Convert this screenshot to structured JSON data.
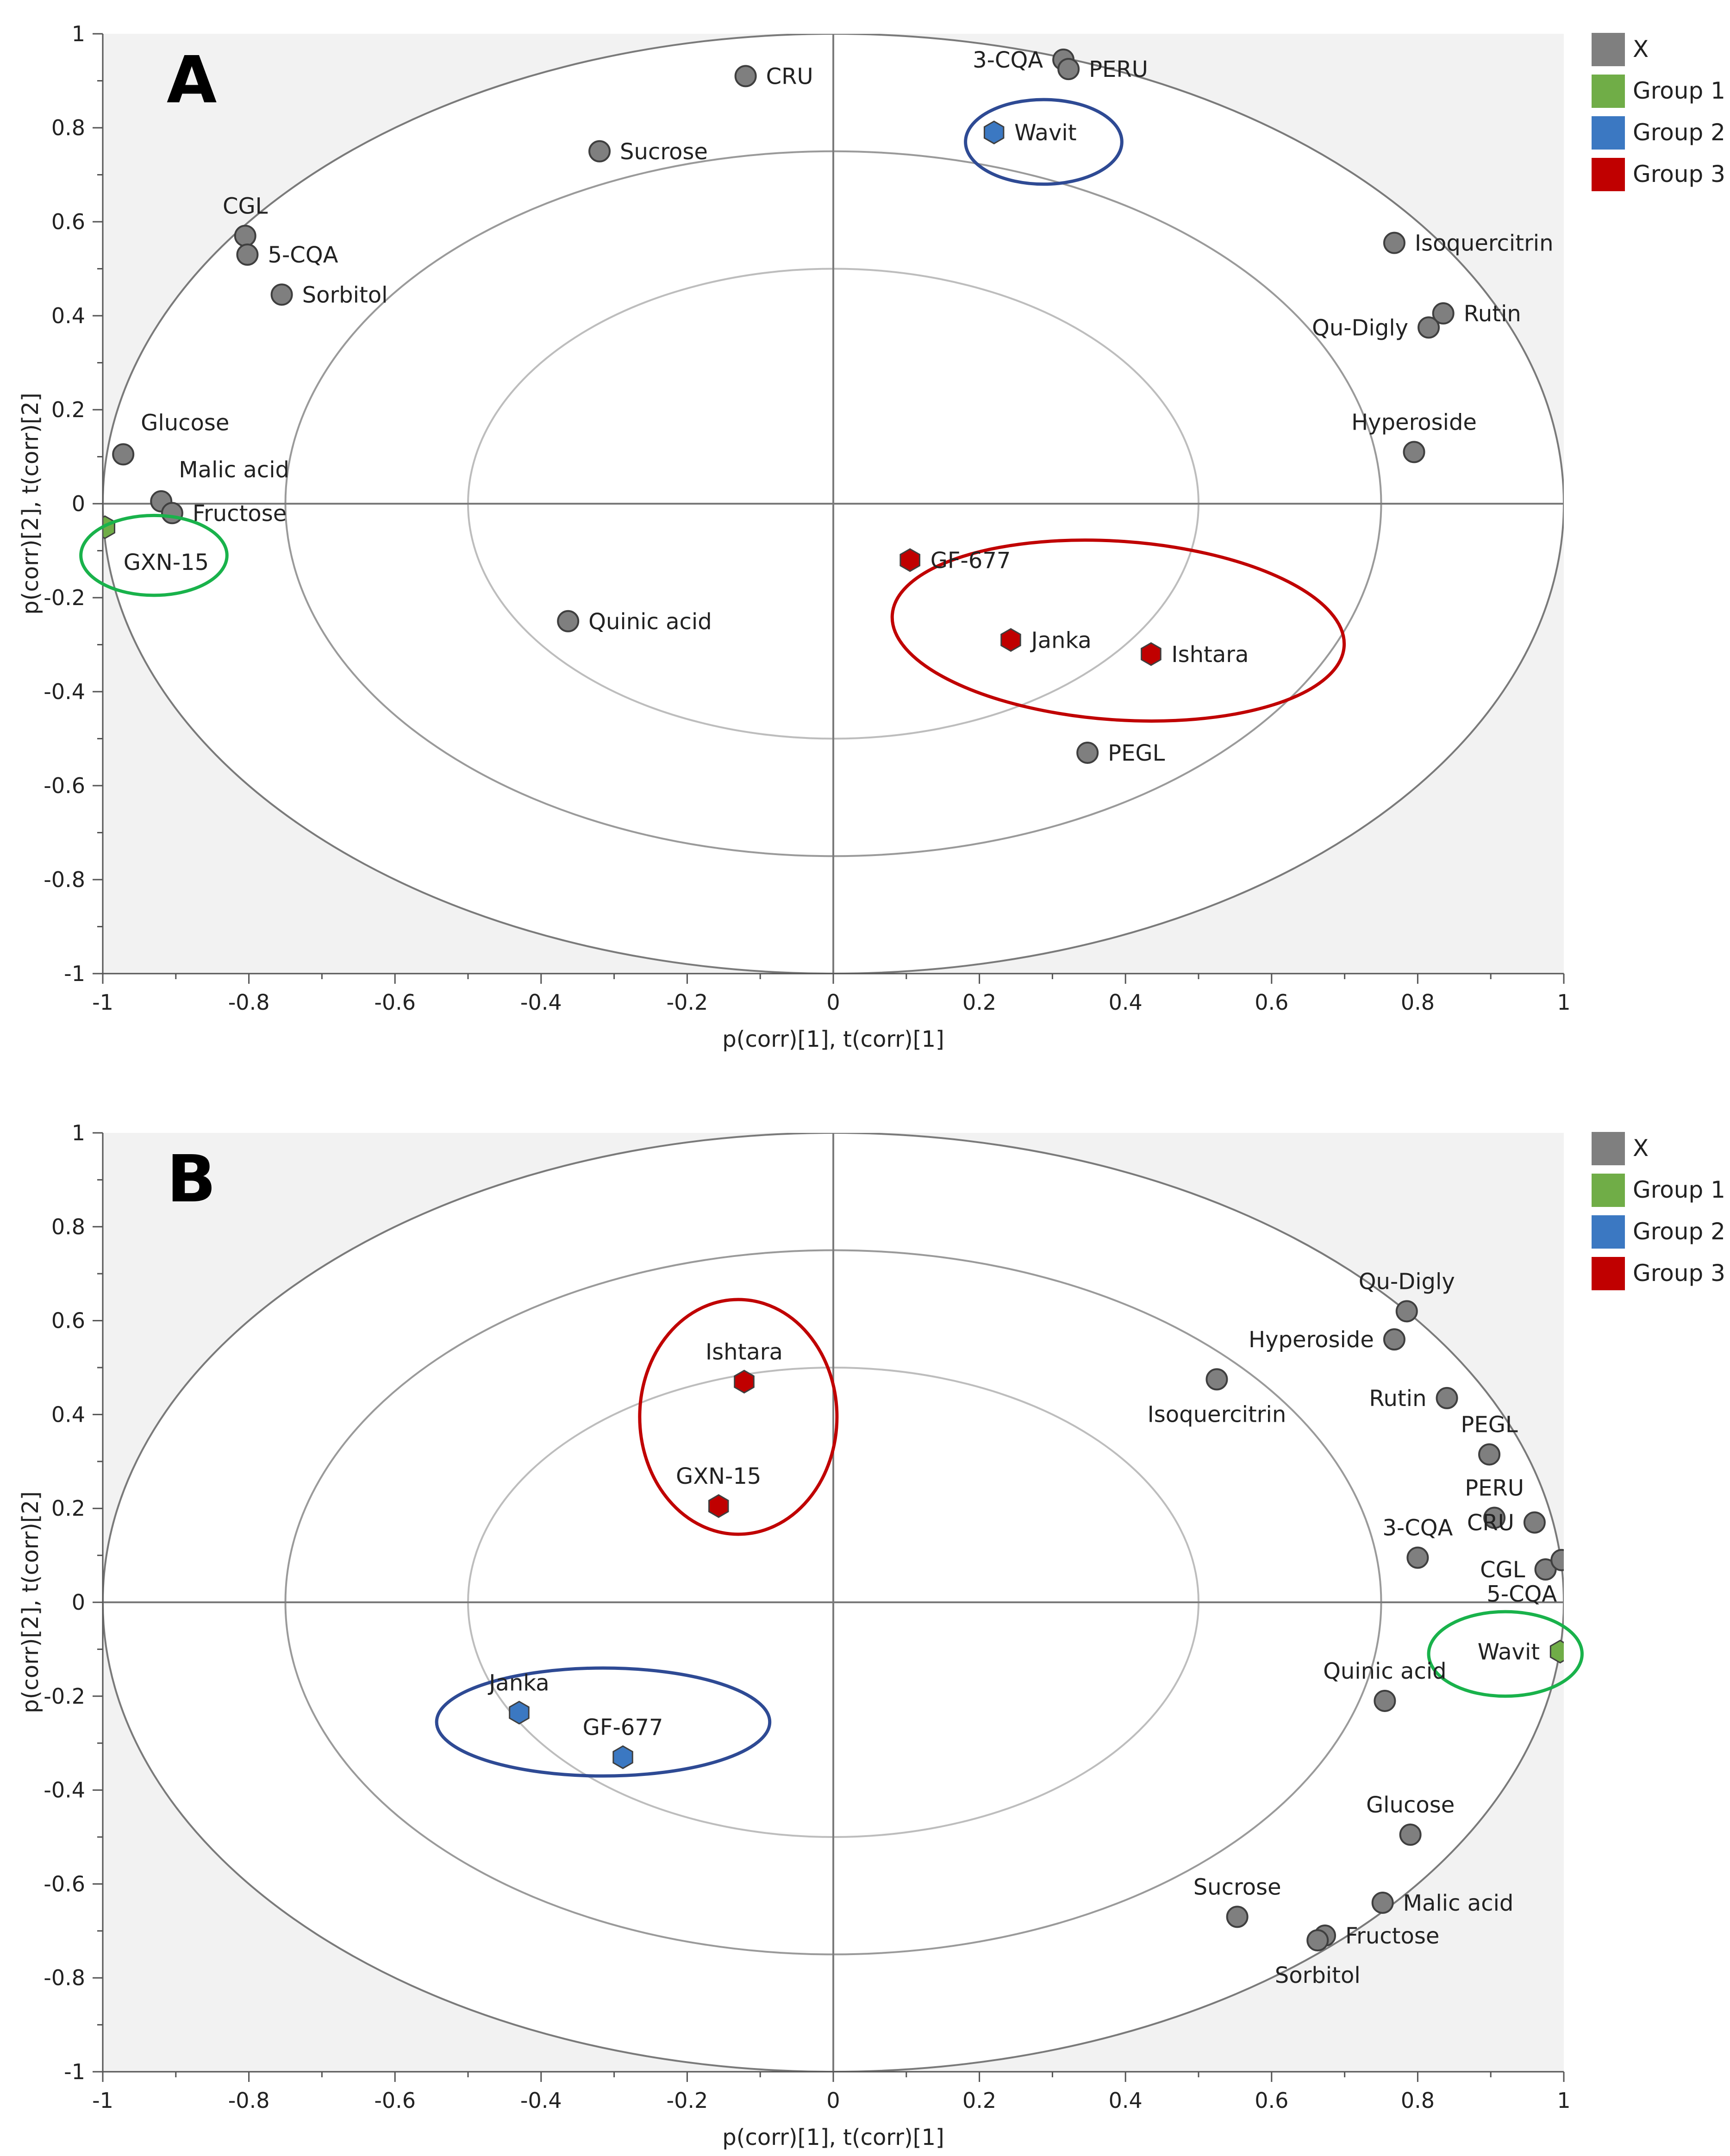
{
  "colors": {
    "X": "#7f7f7f",
    "Group 1": "#70ad47",
    "Group 2": "#3b78c2",
    "Group 3": "#c00000",
    "ring_green": "#19b24b",
    "ring_blue": "#2e4a94",
    "ring_red": "#c00000",
    "shade": "#f2f2f2"
  },
  "chart_data": [
    {
      "type": "scatter",
      "panel_label": "A",
      "xlabel": "p(corr)[1], t(corr)[1]",
      "ylabel": "p(corr)[2], t(corr)[2]",
      "xlim": [
        -1,
        1
      ],
      "ylim": [
        -1,
        1
      ],
      "x_ticks": [
        "-1",
        "-0.8",
        "-0.6",
        "-0.4",
        "-0.2",
        "0",
        "0.2",
        "0.4",
        "0.6",
        "0.8",
        "1"
      ],
      "y_ticks": [
        "1",
        "0.8",
        "0.6",
        "0.4",
        "0.2",
        "0",
        "-0.2",
        "-0.4",
        "-0.6",
        "-0.8",
        "-1"
      ],
      "legend": [
        "X",
        "Group 1",
        "Group 2",
        "Group 3"
      ],
      "legend_position": "top-right",
      "ellipse_radii": [
        1,
        0.75,
        0.5
      ],
      "points": [
        {
          "label": "CRU",
          "x": -0.12,
          "y": 0.91,
          "group": "X",
          "label_pos": "right"
        },
        {
          "label": "3-CQA",
          "x": 0.315,
          "y": 0.945,
          "group": "X",
          "label_pos": "left"
        },
        {
          "label": "PERU",
          "x": 0.322,
          "y": 0.925,
          "group": "X",
          "label_pos": "right"
        },
        {
          "label": "Sucrose",
          "x": -0.32,
          "y": 0.75,
          "group": "X",
          "label_pos": "right"
        },
        {
          "label": "CGL",
          "x": -0.805,
          "y": 0.57,
          "group": "X",
          "label_pos": "above"
        },
        {
          "label": "5-CQA",
          "x": -0.802,
          "y": 0.53,
          "group": "X",
          "label_pos": "right"
        },
        {
          "label": "Sorbitol",
          "x": -0.755,
          "y": 0.445,
          "group": "X",
          "label_pos": "right"
        },
        {
          "label": "Isoquercitrin",
          "x": 0.768,
          "y": 0.555,
          "group": "X",
          "label_pos": "right"
        },
        {
          "label": "Rutin",
          "x": 0.835,
          "y": 0.405,
          "group": "X",
          "label_pos": "right"
        },
        {
          "label": "Qu-Digly",
          "x": 0.815,
          "y": 0.375,
          "group": "X",
          "label_pos": "left"
        },
        {
          "label": "Hyperoside",
          "x": 0.795,
          "y": 0.11,
          "group": "X",
          "label_pos": "above"
        },
        {
          "label": "Glucose",
          "x": -0.972,
          "y": 0.105,
          "group": "X",
          "label_pos": "above-right"
        },
        {
          "label": "Malic acid",
          "x": -0.92,
          "y": 0.005,
          "group": "X",
          "label_pos": "above-right"
        },
        {
          "label": "Fructose",
          "x": -0.905,
          "y": -0.02,
          "group": "X",
          "label_pos": "right"
        },
        {
          "label": "Quinic acid",
          "x": -0.363,
          "y": -0.25,
          "group": "X",
          "label_pos": "right"
        },
        {
          "label": "PEGL",
          "x": 0.348,
          "y": -0.53,
          "group": "X",
          "label_pos": "right"
        },
        {
          "label": "GXN-15",
          "x": -0.997,
          "y": -0.05,
          "group": "Group 1",
          "label_pos": "below-right"
        },
        {
          "label": "Wavit",
          "x": 0.22,
          "y": 0.79,
          "group": "Group 2",
          "label_pos": "right"
        },
        {
          "label": "GF-677",
          "x": 0.105,
          "y": -0.12,
          "group": "Group 3",
          "label_pos": "right"
        },
        {
          "label": "Janka",
          "x": 0.243,
          "y": -0.29,
          "group": "Group 3",
          "label_pos": "right"
        },
        {
          "label": "Ishtara",
          "x": 0.435,
          "y": -0.32,
          "group": "Group 3",
          "label_pos": "right"
        }
      ],
      "group_rings": [
        {
          "group": "Group 1",
          "cx": -0.93,
          "cy": -0.11,
          "rx": 0.1,
          "ry": 0.085
        },
        {
          "group": "Group 2",
          "cx": 0.288,
          "cy": 0.77,
          "rx": 0.107,
          "ry": 0.09
        },
        {
          "group": "Group 3",
          "cx": 0.39,
          "cy": -0.27,
          "rx": 0.31,
          "ry": 0.19,
          "rotate": 4
        }
      ]
    },
    {
      "type": "scatter",
      "panel_label": "B",
      "xlabel": "p(corr)[1], t(corr)[1]",
      "ylabel": "p(corr)[2], t(corr)[2]",
      "xlim": [
        -1,
        1
      ],
      "ylim": [
        -1,
        1
      ],
      "x_ticks": [
        "-1",
        "-0.8",
        "-0.6",
        "-0.4",
        "-0.2",
        "0",
        "0.2",
        "0.4",
        "0.6",
        "0.8",
        "1"
      ],
      "y_ticks": [
        "1",
        "0.8",
        "0.6",
        "0.4",
        "0.2",
        "0",
        "-0.2",
        "-0.4",
        "-0.6",
        "-0.8",
        "-1"
      ],
      "legend": [
        "X",
        "Group 1",
        "Group 2",
        "Group 3"
      ],
      "legend_position": "top-right",
      "ellipse_radii": [
        1,
        0.75,
        0.5
      ],
      "points": [
        {
          "label": "Qu-Digly",
          "x": 0.785,
          "y": 0.62,
          "group": "X",
          "label_pos": "above"
        },
        {
          "label": "Hyperoside",
          "x": 0.768,
          "y": 0.56,
          "group": "X",
          "label_pos": "left"
        },
        {
          "label": "Isoquercitrin",
          "x": 0.525,
          "y": 0.475,
          "group": "X",
          "label_pos": "below"
        },
        {
          "label": "Rutin",
          "x": 0.84,
          "y": 0.435,
          "group": "X",
          "label_pos": "left"
        },
        {
          "label": "PEGL",
          "x": 0.898,
          "y": 0.315,
          "group": "X",
          "label_pos": "above"
        },
        {
          "label": "PERU",
          "x": 0.905,
          "y": 0.18,
          "group": "X",
          "label_pos": "above"
        },
        {
          "label": "CRU",
          "x": 0.96,
          "y": 0.17,
          "group": "X",
          "label_pos": "left"
        },
        {
          "label": "3-CQA",
          "x": 0.8,
          "y": 0.095,
          "group": "X",
          "label_pos": "above"
        },
        {
          "label": "CGL",
          "x": 0.975,
          "y": 0.07,
          "group": "X",
          "label_pos": "left"
        },
        {
          "label": "5-CQA",
          "x": 0.997,
          "y": 0.09,
          "group": "X",
          "label_pos": "below-left"
        },
        {
          "label": "Quinic acid",
          "x": 0.755,
          "y": -0.21,
          "group": "X",
          "label_pos": "above"
        },
        {
          "label": "Glucose",
          "x": 0.79,
          "y": -0.495,
          "group": "X",
          "label_pos": "above"
        },
        {
          "label": "Sucrose",
          "x": 0.553,
          "y": -0.67,
          "group": "X",
          "label_pos": "above"
        },
        {
          "label": "Malic acid",
          "x": 0.752,
          "y": -0.64,
          "group": "X",
          "label_pos": "right"
        },
        {
          "label": "Fructose",
          "x": 0.673,
          "y": -0.71,
          "group": "X",
          "label_pos": "right"
        },
        {
          "label": "Sorbitol",
          "x": 0.663,
          "y": -0.72,
          "group": "X",
          "label_pos": "below"
        },
        {
          "label": "Wavit",
          "x": 0.995,
          "y": -0.105,
          "group": "Group 1",
          "label_pos": "left"
        },
        {
          "label": "Janka",
          "x": -0.43,
          "y": -0.235,
          "group": "Group 2",
          "label_pos": "above"
        },
        {
          "label": "GF-677",
          "x": -0.288,
          "y": -0.33,
          "group": "Group 2",
          "label_pos": "above"
        },
        {
          "label": "Ishtara",
          "x": -0.122,
          "y": 0.47,
          "group": "Group 3",
          "label_pos": "above"
        },
        {
          "label": "GXN-15",
          "x": -0.157,
          "y": 0.205,
          "group": "Group 3",
          "label_pos": "above"
        }
      ],
      "group_rings": [
        {
          "group": "Group 1",
          "cx": 0.92,
          "cy": -0.11,
          "rx": 0.105,
          "ry": 0.09
        },
        {
          "group": "Group 2",
          "cx": -0.315,
          "cy": -0.255,
          "rx": 0.228,
          "ry": 0.115
        },
        {
          "group": "Group 3",
          "cx": -0.13,
          "cy": 0.395,
          "rx": 0.135,
          "ry": 0.25
        }
      ]
    }
  ]
}
